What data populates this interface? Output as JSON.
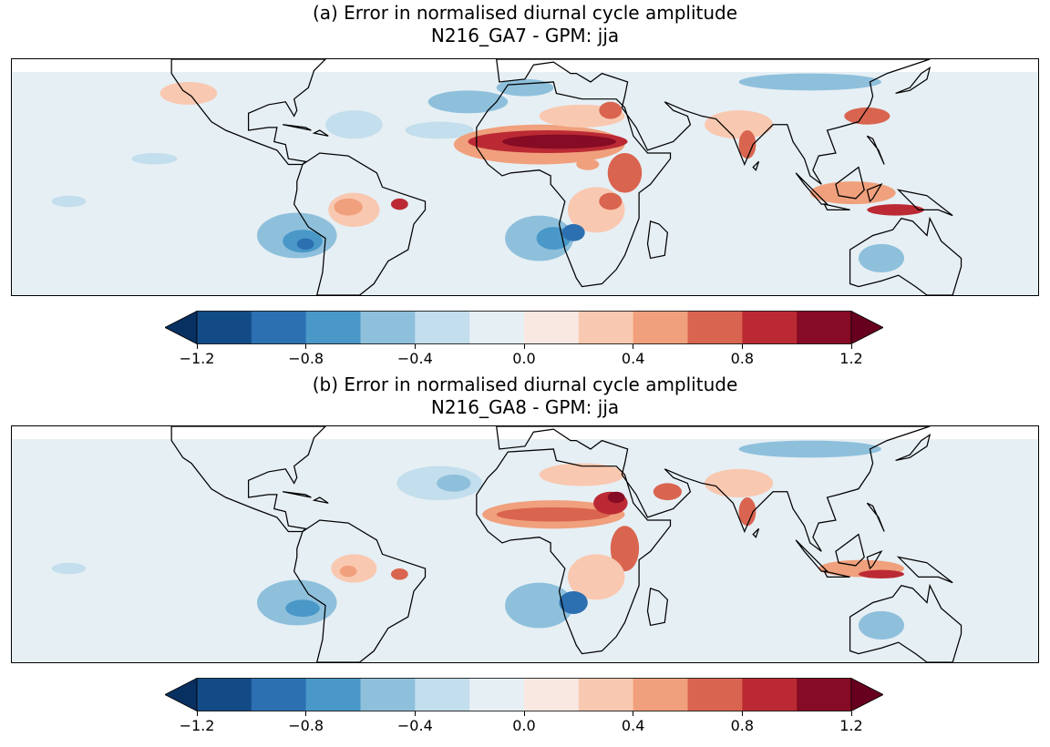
{
  "panels": [
    {
      "title_line1": "(a) Error in normalised diurnal cycle amplitude",
      "title_line2": "N216_GA7 - GPM: jja"
    },
    {
      "title_line1": "(b) Error in normalised diurnal cycle amplitude",
      "title_line2": "N216_GA8 - GPM: jja"
    }
  ],
  "colorbar": {
    "levels": [
      -1.2,
      -1.0,
      -0.8,
      -0.6,
      -0.4,
      -0.2,
      0.0,
      0.2,
      0.4,
      0.6,
      0.8,
      1.0,
      1.2
    ],
    "tick_labels": [
      "−1.2",
      "−0.8",
      "−0.4",
      "0.0",
      "0.4",
      "0.8",
      "1.2"
    ],
    "colors": [
      "#134b87",
      "#2c70b2",
      "#4a98c8",
      "#8ec0dc",
      "#c3deec",
      "#e6eff4",
      "#f9e8e1",
      "#f9c8b0",
      "#f0a07c",
      "#d9644f",
      "#bb2a34",
      "#860b24"
    ],
    "under_color": "#083061",
    "over_color": "#67001f",
    "extend": "both"
  }
}
